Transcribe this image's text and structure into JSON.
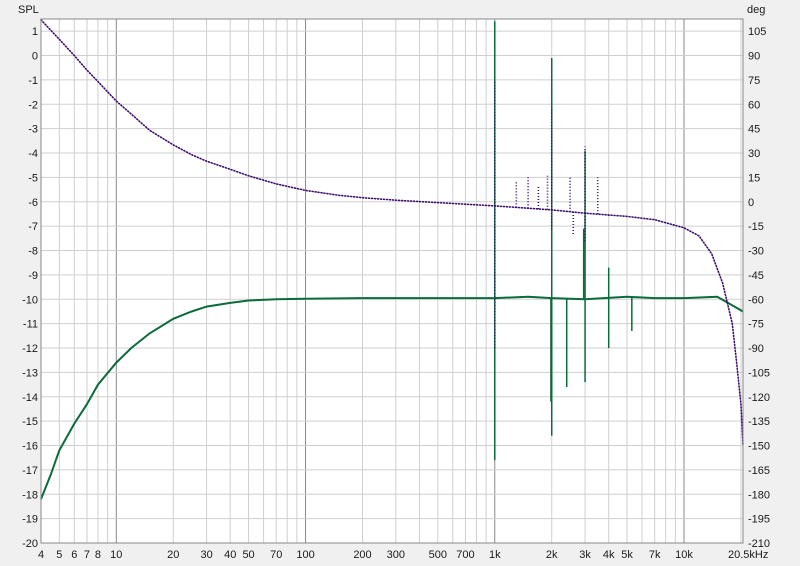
{
  "chart_data": {
    "type": "line",
    "x_scale": "log",
    "x_unit_label": "kHz",
    "y_left_label": "SPL",
    "y_right_label": "deg",
    "xlim": [
      4,
      20500
    ],
    "y_left_lim": [
      -20,
      1.5
    ],
    "y_right_lim": [
      -210,
      112.5
    ],
    "grid": true,
    "x_tick_labels": [
      {
        "v": 4,
        "t": "4"
      },
      {
        "v": 5,
        "t": "5"
      },
      {
        "v": 6,
        "t": "6"
      },
      {
        "v": 7,
        "t": "7"
      },
      {
        "v": 8,
        "t": "8"
      },
      {
        "v": 10,
        "t": "10"
      },
      {
        "v": 20,
        "t": "20"
      },
      {
        "v": 30,
        "t": "30"
      },
      {
        "v": 40,
        "t": "40"
      },
      {
        "v": 50,
        "t": "50"
      },
      {
        "v": 70,
        "t": "70"
      },
      {
        "v": 100,
        "t": "100"
      },
      {
        "v": 200,
        "t": "200"
      },
      {
        "v": 300,
        "t": "300"
      },
      {
        "v": 500,
        "t": "500"
      },
      {
        "v": 700,
        "t": "700"
      },
      {
        "v": 1000,
        "t": "1k"
      },
      {
        "v": 2000,
        "t": "2k"
      },
      {
        "v": 3000,
        "t": "3k"
      },
      {
        "v": 4000,
        "t": "4k"
      },
      {
        "v": 5000,
        "t": "5k"
      },
      {
        "v": 7000,
        "t": "7k"
      },
      {
        "v": 10000,
        "t": "10k"
      },
      {
        "v": 20500,
        "t": "20.5kHz"
      }
    ],
    "y_left_ticks": [
      1,
      0,
      -1,
      -2,
      -3,
      -4,
      -5,
      -6,
      -7,
      -8,
      -9,
      -10,
      -11,
      -12,
      -13,
      -14,
      -15,
      -16,
      -17,
      -18,
      -19,
      -20
    ],
    "y_right_ticks": [
      105,
      90,
      75,
      60,
      45,
      30,
      15,
      0,
      -15,
      -30,
      -45,
      -60,
      -75,
      -90,
      -105,
      -120,
      -135,
      -150,
      -165,
      -180,
      -195,
      -210
    ],
    "series": [
      {
        "name": "",
        "axis": "left",
        "color": "#0b6b3a",
        "style": "solid",
        "x": [
          4,
          4.5,
          5,
          6,
          7,
          8,
          10,
          12,
          15,
          20,
          25,
          30,
          40,
          50,
          70,
          100,
          200,
          300,
          500,
          700,
          1000,
          1500,
          2000,
          3000,
          5000,
          7000,
          10000,
          15000,
          20500
        ],
        "y": [
          -18.2,
          -17.2,
          -16.2,
          -15.1,
          -14.3,
          -13.5,
          -12.6,
          -12.0,
          -11.4,
          -10.8,
          -10.5,
          -10.3,
          -10.15,
          -10.05,
          -10.0,
          -9.98,
          -9.95,
          -9.95,
          -9.95,
          -9.95,
          -9.95,
          -9.9,
          -9.95,
          -10.0,
          -9.9,
          -9.95,
          -9.95,
          -9.9,
          -10.5
        ],
        "spikes": [
          {
            "x": 1000,
            "y": 1.4
          },
          {
            "x": 1000,
            "y": -16.6
          },
          {
            "x": 2000,
            "y": -0.1
          },
          {
            "x": 2000,
            "y": -15.6
          },
          {
            "x": 1980,
            "y": -14.2
          },
          {
            "x": 2400,
            "y": -13.6
          },
          {
            "x": 3000,
            "y": -3.9
          },
          {
            "x": 3000,
            "y": -13.4
          },
          {
            "x": 2950,
            "y": -7.1
          },
          {
            "x": 4000,
            "y": -8.7
          },
          {
            "x": 4000,
            "y": -12.0
          },
          {
            "x": 5300,
            "y": -11.3
          }
        ]
      },
      {
        "name": "",
        "axis": "right",
        "color": "#3d0e6e",
        "style": "dotted",
        "x": [
          4,
          5,
          6,
          7,
          8,
          10,
          12,
          15,
          20,
          25,
          30,
          40,
          50,
          70,
          100,
          150,
          200,
          300,
          500,
          700,
          1000,
          2000,
          3000,
          5000,
          7000,
          10000,
          12000,
          14000,
          16000,
          18000,
          19000,
          20000,
          20500
        ],
        "y": [
          112,
          100,
          90,
          81,
          74,
          62,
          54,
          44,
          35,
          29,
          25,
          20,
          16,
          11,
          7,
          4,
          2.5,
          1,
          -0.5,
          -1.5,
          -2.5,
          -5,
          -7,
          -9,
          -11,
          -16,
          -21,
          -32,
          -50,
          -75,
          -100,
          -125,
          -150
        ],
        "spikes": [
          {
            "x": 1000,
            "y": 75
          },
          {
            "x": 1000,
            "y": -90
          },
          {
            "x": 2000,
            "y": 58
          },
          {
            "x": 2000,
            "y": -18
          },
          {
            "x": 3000,
            "y": 34
          },
          {
            "x": 3000,
            "y": -25
          },
          {
            "x": 1300,
            "y": 13
          },
          {
            "x": 1500,
            "y": 15
          },
          {
            "x": 1700,
            "y": 10
          },
          {
            "x": 1900,
            "y": 16
          },
          {
            "x": 2500,
            "y": 16
          },
          {
            "x": 3500,
            "y": 15
          },
          {
            "x": 2600,
            "y": -20
          },
          {
            "x": 4000,
            "y": -10
          }
        ]
      }
    ]
  }
}
